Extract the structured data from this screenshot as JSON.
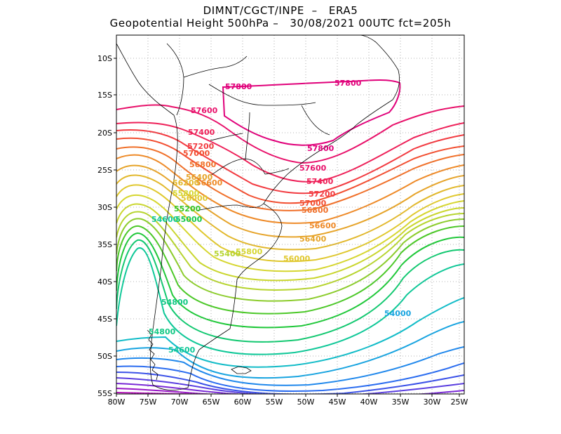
{
  "header": {
    "line1": "DIMNT/CGCT/INPE  –   ERA5",
    "line2": "Geopotential Height 500hPa –   30/08/2021 00UTC fct=205h"
  },
  "axes": {
    "lon_ticks": [
      "80W",
      "75W",
      "70W",
      "65W",
      "60W",
      "55W",
      "50W",
      "45W",
      "40W",
      "35W",
      "30W",
      "25W"
    ],
    "lat_ticks": [
      "10S",
      "15S",
      "20S",
      "25S",
      "30S",
      "35S",
      "40S",
      "45S",
      "50S",
      "55S"
    ],
    "lon_range": [
      -80,
      -25
    ],
    "lat_range": [
      -55,
      -7
    ]
  },
  "contour_labels": [
    {
      "text": "57800",
      "color": "#e0007a"
    },
    {
      "text": "57800",
      "color": "#e0007a"
    },
    {
      "text": "57800",
      "color": "#e0007a"
    },
    {
      "text": "57600",
      "color": "#e8106a"
    },
    {
      "text": "57600",
      "color": "#e8106a"
    },
    {
      "text": "57400",
      "color": "#ee2058"
    },
    {
      "text": "57400",
      "color": "#ee2058"
    },
    {
      "text": "57200",
      "color": "#f23a40"
    },
    {
      "text": "57200",
      "color": "#f23a40"
    },
    {
      "text": "57000",
      "color": "#f24e30"
    },
    {
      "text": "57000",
      "color": "#f24e30"
    },
    {
      "text": "56800",
      "color": "#f0702a"
    },
    {
      "text": "56800",
      "color": "#f0702a"
    },
    {
      "text": "56600",
      "color": "#ee8a28"
    },
    {
      "text": "56600",
      "color": "#ee8a28"
    },
    {
      "text": "56400",
      "color": "#e6a42a"
    },
    {
      "text": "56400",
      "color": "#e6a42a"
    },
    {
      "text": "56200",
      "color": "#e2b82c"
    },
    {
      "text": "56000",
      "color": "#e0c82e"
    },
    {
      "text": "56000",
      "color": "#e0c82e"
    },
    {
      "text": "55800",
      "color": "#d6d630"
    },
    {
      "text": "55800",
      "color": "#d6d630"
    },
    {
      "text": "55400",
      "color": "#b6d42e"
    },
    {
      "text": "55200",
      "color": "#38c828"
    },
    {
      "text": "55000",
      "color": "#18c84a"
    },
    {
      "text": "54600",
      "color": "#10c898"
    },
    {
      "text": "54800",
      "color": "#12c884"
    },
    {
      "text": "54800",
      "color": "#12c884"
    },
    {
      "text": "54600",
      "color": "#10c898"
    },
    {
      "text": "54000",
      "color": "#18a4e0"
    }
  ]
}
